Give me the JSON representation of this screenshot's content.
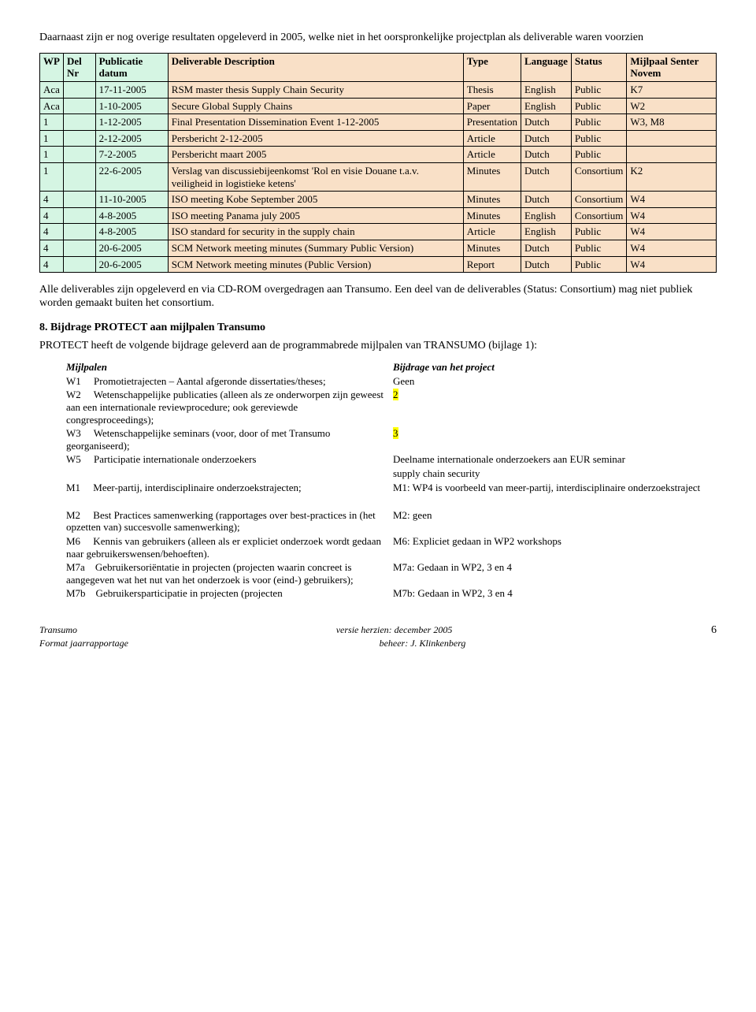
{
  "intro": "Daarnaast zijn er nog overige resultaten opgeleverd in 2005, welke niet in het oorspronkelijke projectplan als deliverable waren voorzien",
  "colors": {
    "mint": "#d5f5e3",
    "peach": "#f9e0c7",
    "highlight": "#ffff00"
  },
  "tbl_headers": [
    "WP",
    "Del Nr",
    "Publicatie datum",
    "Deliverable Description",
    "Type",
    "Language",
    "Status",
    "Mijlpaal Senter Novem"
  ],
  "tbl_header_classes": [
    "mint",
    "mint",
    "mint",
    "peach",
    "peach",
    "peach",
    "peach",
    "peach"
  ],
  "tbl_rows": [
    [
      "Aca",
      "",
      "17-11-2005",
      "RSM master thesis Supply Chain Security",
      "Thesis",
      "English",
      "Public",
      "K7"
    ],
    [
      "Aca",
      "",
      "1-10-2005",
      "Secure Global Supply Chains",
      "Paper",
      "English",
      "Public",
      "W2"
    ],
    [
      "1",
      "",
      "1-12-2005",
      "Final Presentation Dissemination Event 1-12-2005",
      "Presentation",
      "Dutch",
      "Public",
      "W3, M8"
    ],
    [
      "1",
      "",
      "2-12-2005",
      "Persbericht 2-12-2005",
      "Article",
      "Dutch",
      "Public",
      ""
    ],
    [
      "1",
      "",
      "7-2-2005",
      "Persbericht maart 2005",
      "Article",
      "Dutch",
      "Public",
      ""
    ],
    [
      "1",
      "",
      "22-6-2005",
      "Verslag van discussiebijeenkomst 'Rol en visie Douane t.a.v. veiligheid in logistieke ketens'",
      "Minutes",
      "Dutch",
      "Consortium",
      "K2"
    ],
    [
      "4",
      "",
      "11-10-2005",
      "ISO meeting Kobe September 2005",
      "Minutes",
      "Dutch",
      "Consortium",
      "W4"
    ],
    [
      "4",
      "",
      "4-8-2005",
      "ISO meeting Panama july 2005",
      "Minutes",
      "English",
      "Consortium",
      "W4"
    ],
    [
      "4",
      "",
      "4-8-2005",
      "ISO standard for security in the supply chain",
      "Article",
      "English",
      "Public",
      "W4"
    ],
    [
      "4",
      "",
      "20-6-2005",
      "SCM Network meeting minutes (Summary Public Version)",
      "Minutes",
      "Dutch",
      "Public",
      "W4"
    ],
    [
      "4",
      "",
      "20-6-2005",
      "SCM Network meeting minutes (Public Version)",
      "Report",
      "Dutch",
      "Public",
      "W4"
    ]
  ],
  "after_table": "Alle deliverables zijn opgeleverd en via CD-ROM overgedragen aan Transumo. Een deel van de deliverables (Status: Consortium) mag niet publiek worden gemaakt buiten het consortium.",
  "section8_title": "8. Bijdrage PROTECT aan mijlpalen Transumo",
  "section8_intro": "PROTECT heeft de volgende bijdrage geleverd aan de programmabrede mijlpalen van TRANSUMO (bijlage 1):",
  "mijl_header_left": "Mijlpalen",
  "mijl_header_right": "Bijdrage van het project",
  "mijl_rows": [
    {
      "left": "W1     Promotietrajecten – Aantal afgeronde dissertaties/theses;",
      "right": "Geen",
      "hl": false
    },
    {
      "left": "W2     Wetenschappelijke publicaties (alleen als ze onderworpen zijn geweest aan een internationale reviewprocedure; ook gereviewde congresproceedings);",
      "right": "2",
      "hl": true
    },
    {
      "left": "W3     Wetenschappelijke seminars (voor, door of met Transumo georganiseerd);",
      "right": "3",
      "hl": true
    },
    {
      "left": "W5     Participatie internationale onderzoekers",
      "right": "Deelname internationale onderzoekers aan EUR seminar",
      "hl": false
    },
    {
      "left": "",
      "right_indent": "supply chain security",
      "hl": false
    },
    {
      "left": "M1     Meer-partij, interdisciplinaire onderzoekstrajecten;",
      "right": "M1: WP4 is voorbeeld van meer-partij, interdisciplinaire onderzoekstraject",
      "hl": false
    },
    {
      "left": " ",
      "right": " ",
      "hl": false
    },
    {
      "left": "M2     Best Practices samenwerking (rapportages over best-practices in (het opzetten van) succesvolle samenwerking);",
      "right": "M2: geen",
      "hl": false
    },
    {
      "left": "M6     Kennis van gebruikers (alleen als er expliciet onderzoek wordt gedaan naar gebruikerswensen/behoeften).",
      "right": "M6: Expliciet gedaan in WP2 workshops",
      "hl": false
    },
    {
      "left": "M7a    Gebruikersoriëntatie in projecten (projecten waarin concreet is aangegeven wat het nut van het onderzoek is voor (eind-) gebruikers);",
      "right": "M7a: Gedaan in WP2, 3 en 4",
      "hl": false
    },
    {
      "left": "M7b    Gebruikersparticipatie in projecten (projecten",
      "right": "M7b: Gedaan in WP2, 3 en 4",
      "hl": false
    }
  ],
  "footer": {
    "left1": "Transumo",
    "left2": "Format jaarrapportage",
    "center1": "versie herzien: december 2005",
    "center2": "beheer: J. Klinkenberg",
    "page": "6"
  }
}
